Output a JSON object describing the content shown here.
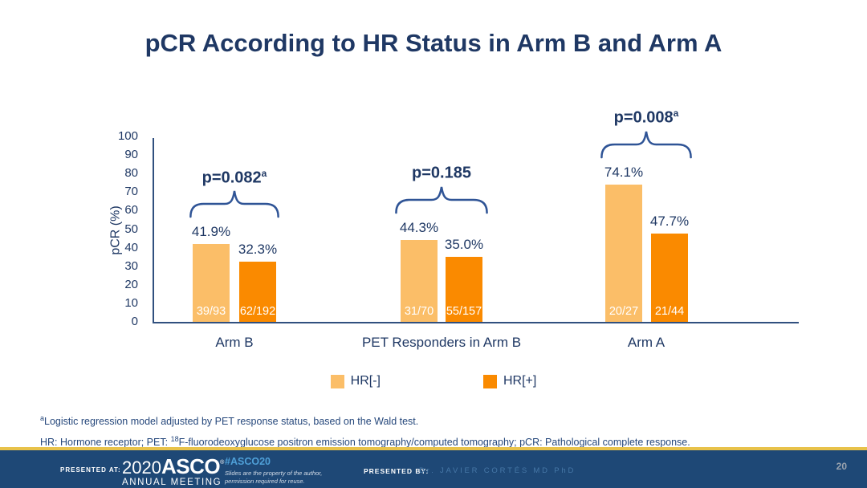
{
  "slide": {
    "title": "pCR According to HR Status in Arm B and Arm A"
  },
  "chart_data": {
    "type": "bar",
    "title": "pCR According to HR Status in Arm B and Arm A",
    "xlabel": "",
    "ylabel": "pCR (%)",
    "ylim": [
      0,
      100
    ],
    "yticks": [
      0,
      10,
      20,
      30,
      40,
      50,
      60,
      70,
      80,
      90,
      100
    ],
    "grid": false,
    "legend_position": "bottom",
    "text_color": "#1F3864",
    "axis_color": "#31507F",
    "categories": [
      "Arm B",
      "PET Responders in Arm B",
      "Arm A"
    ],
    "series": [
      {
        "name": "HR[-]",
        "color": "#FBBE68",
        "values": [
          41.9,
          44.3,
          74.1
        ],
        "pct_labels": [
          "41.9%",
          "44.3%",
          "74.1%"
        ],
        "fraction_labels": [
          "39/93",
          "31/70",
          "20/27"
        ]
      },
      {
        "name": "HR[+]",
        "color": "#FA8A00",
        "values": [
          32.3,
          35.0,
          47.7
        ],
        "pct_labels": [
          "32.3%",
          "35.0%",
          "47.7%"
        ],
        "fraction_labels": [
          "62/192",
          "55/157",
          "21/44"
        ]
      }
    ],
    "p_values": [
      {
        "text": "p=0.082",
        "superscript": "a"
      },
      {
        "text": "p=0.185",
        "superscript": ""
      },
      {
        "text": "p=0.008",
        "superscript": "a"
      }
    ]
  },
  "footnotes": {
    "line1_superscript": "a",
    "line1": "Logistic regression model adjusted by PET response status, based on the Wald test.",
    "line2_prefix": "HR: Hormone receptor; PET: ",
    "line2_superscript": "18",
    "line2_suffix": "F-fluorodeoxyglucose positron emission tomography/computed tomography; pCR: Pathological complete response."
  },
  "footer": {
    "presented_at_label": "PRESENTED AT:",
    "logo_year": "2020",
    "logo_name": "ASCO",
    "logo_registered": "®",
    "logo_subtitle": "ANNUAL MEETING",
    "hashtag": "#ASCO20",
    "disclaimer_line1": "Slides are the property of the author,",
    "disclaimer_line2": "permission required for reuse.",
    "presented_by_label": "PRESENTED BY:",
    "presenter": "Dr.  JAVIER CORTÉS MD PhD",
    "page_number": "20",
    "bar_color": "#1E4876",
    "gold_line_color": "#E8C24A",
    "hashtag_color": "#4FA0D8"
  }
}
